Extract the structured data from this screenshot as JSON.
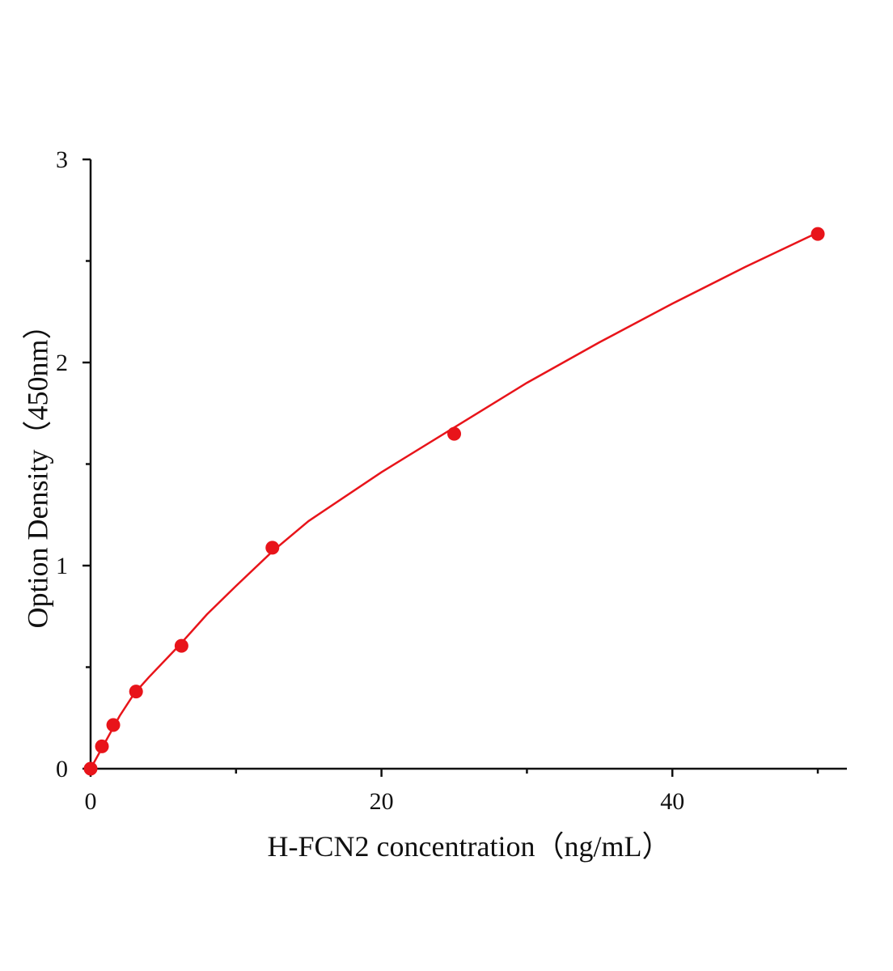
{
  "chart_data": {
    "type": "scatter",
    "xlabel": "H-FCN2 concentration（ng/mL）",
    "ylabel": "Option Density（450nm）",
    "x": [
      0,
      0.78,
      1.56,
      3.125,
      6.25,
      12.5,
      25,
      50
    ],
    "values": [
      0,
      0.11,
      0.215,
      0.38,
      0.605,
      1.088,
      1.649,
      2.633
    ],
    "color": "#e8141a",
    "fit": {
      "x": [
        0,
        1,
        2,
        3,
        4,
        6,
        8,
        10,
        12.5,
        15,
        20,
        25,
        30,
        35,
        40,
        45,
        50
      ],
      "values": [
        0,
        0.13,
        0.26,
        0.37,
        0.45,
        0.6,
        0.76,
        0.9,
        1.07,
        1.22,
        1.46,
        1.68,
        1.9,
        2.1,
        2.29,
        2.47,
        2.64
      ]
    },
    "xlim": [
      0,
      52
    ],
    "ylim": [
      0,
      3
    ],
    "xticks": [
      0,
      20,
      40
    ],
    "xminorticks": [
      10,
      30,
      50
    ],
    "yticks": [
      0,
      1,
      2,
      3
    ],
    "yminorticks": [
      0.5,
      1.5,
      2.5
    ]
  }
}
